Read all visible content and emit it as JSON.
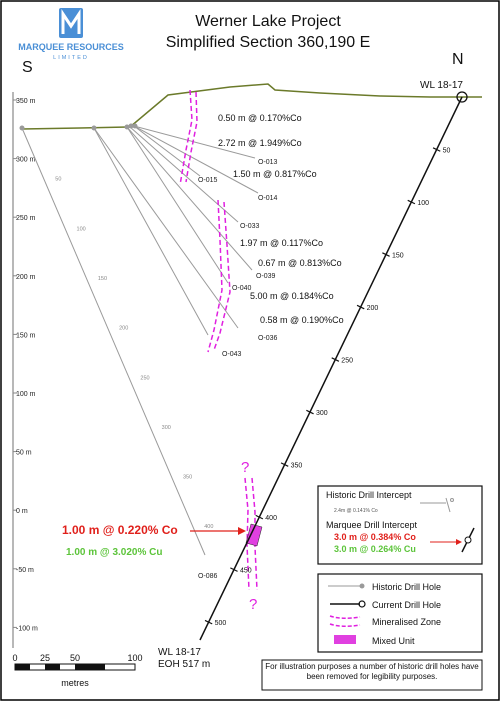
{
  "logo": {
    "name": "MARQUEE RESOURCES",
    "sub": "LIMITED",
    "mark_color": "#4a8fd6"
  },
  "title": {
    "line1": "Werner Lake Project",
    "line2": "Simplified Section 360,190 E"
  },
  "orientation": {
    "left": "S",
    "right": "N"
  },
  "elevation_labels": [
    "350 m",
    "300 m",
    "250 m",
    "200 m",
    "150 m",
    "100 m",
    "50 m",
    "0 m",
    "-50 m",
    "-100 m"
  ],
  "current_hole": {
    "collar_label": "WL 18-17",
    "toe_label_1": "WL 18-17",
    "toe_label_2": "EOH 517 m",
    "depth_ticks": [
      "50",
      "100",
      "150",
      "200",
      "250",
      "300",
      "350",
      "400",
      "450",
      "500"
    ]
  },
  "historic_holes": [
    "O-013",
    "O-015",
    "O-014",
    "O-033",
    "O-039",
    "O-040",
    "O-036",
    "O-043",
    "O-086"
  ],
  "historic_depth_ticks": [
    "50",
    "100",
    "150",
    "200",
    "250",
    "300",
    "350",
    "400"
  ],
  "intercepts": [
    "0.50 m @ 0.170%Co",
    "2.72 m @ 1.949%Co",
    "1.50 m @ 0.817%Co",
    "1.97 m @ 0.117%Co",
    "0.67 m @ 0.813%Co",
    "5.00 m @ 0.184%Co",
    "0.58 m @ 0.190%Co"
  ],
  "main_intercept": {
    "co": "1.00 m @ 0.220% Co",
    "cu": "1.00 m @ 3.020% Cu",
    "co_color": "#e0201b",
    "cu_color": "#5cc43a"
  },
  "question_mark": "?",
  "intercept_legend": {
    "historic_label": "Historic Drill Intercept",
    "historic_example": "2.4m @ 0.141% Co",
    "marquee_label": "Marquee Drill Intercept",
    "marquee_co": "3.0 m @ 0.384% Co",
    "marquee_cu": "3.0 m @ 0.264% Cu"
  },
  "legend": {
    "historic": "Historic Drill Hole",
    "current": "Current Drill Hole",
    "zone": "Mineralised Zone",
    "mixed": "Mixed Unit",
    "zone_color": "#e020e0",
    "mixed_color": "#e040e0"
  },
  "scale": {
    "ticks": [
      "0",
      "25",
      "50",
      "100"
    ],
    "unit": "metres"
  },
  "note": "For illustration purposes a number of historic drill holes have been removed for legibility purposes.",
  "colors": {
    "topography": "#6b7a2a",
    "historic_hole": "#9a9a9a",
    "current_hole": "#111111"
  }
}
